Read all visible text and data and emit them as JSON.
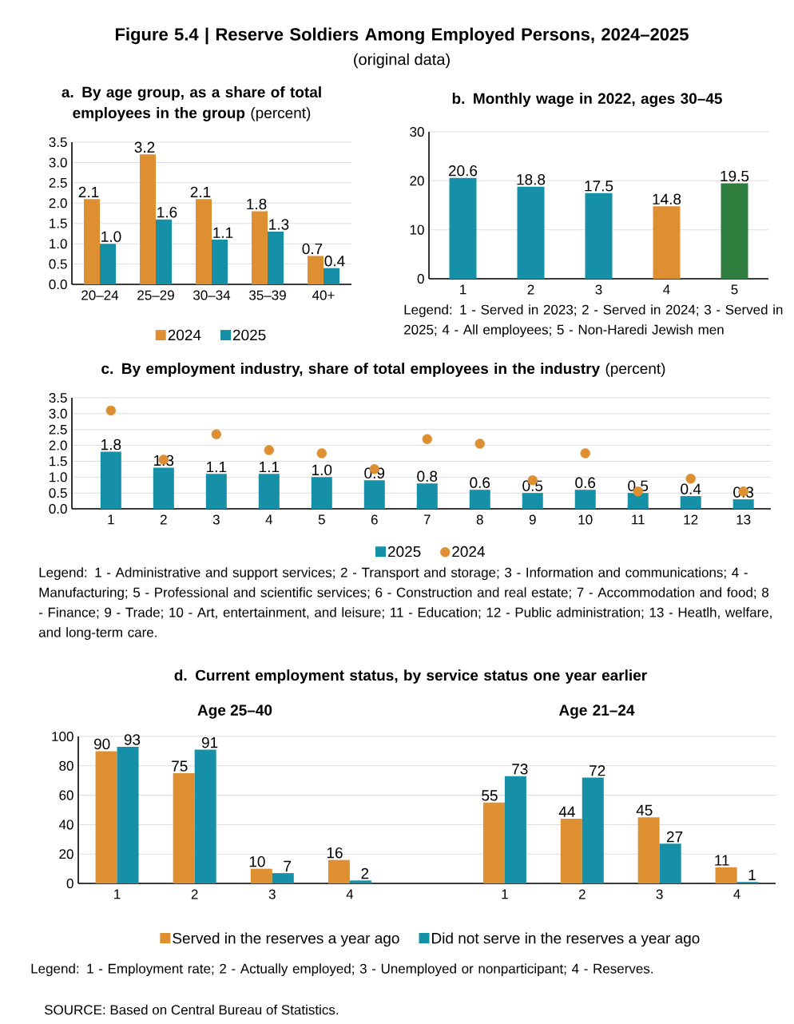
{
  "chart_data": [
    {
      "type": "other",
      "title": "**Figure 5.4 | Reserve Soldiers Among Employed Persons, 2024–2025**",
      "subtitle": "(original data)",
      "annotations": [
        "SOURCE: Based on Central Bureau of Statistics."
      ]
    },
    {
      "type": "bar",
      "title": "**a. By age group, as a share of total employees in the group** (percent)",
      "categories": [
        "20–24",
        "25–29",
        "30–34",
        "35–39",
        "40+"
      ],
      "series": [
        {
          "name": "2024",
          "color": "#dd8f32",
          "values": [
            2.1,
            3.2,
            2.1,
            1.8,
            0.7
          ],
          "value_labels": [
            "2.1",
            "3.2",
            "2.1",
            "1.8",
            "0.7"
          ]
        },
        {
          "name": "2025",
          "color": "#1690a6",
          "values": [
            1.0,
            1.6,
            1.1,
            1.3,
            0.4
          ],
          "value_labels": [
            "1.0",
            "1.6",
            "1.1",
            "1.3",
            "0.4"
          ]
        }
      ],
      "ylim": [
        0,
        3.5
      ],
      "yticks": [
        {
          "value": 0,
          "label": "0.0"
        },
        0.5,
        {
          "value": 1,
          "label": "1.0"
        },
        1.5,
        {
          "value": 2,
          "label": "2.0"
        },
        2.5,
        {
          "value": 3,
          "label": "3.0"
        },
        3.5
      ],
      "grid": true,
      "legend": "bottom"
    },
    {
      "type": "bar",
      "title": "**b. Monthly wage in 2022, ages 30–45**",
      "categories": [
        "1",
        "2",
        "3",
        "4",
        "5"
      ],
      "values": [
        20.6,
        18.8,
        17.5,
        14.8,
        19.5
      ],
      "colors": [
        "#1690a6",
        "#1690a6",
        "#1690a6",
        "#dd8f32",
        "#2e7d3c"
      ],
      "ylim": [
        0,
        30
      ],
      "yticks": [
        0,
        10,
        20,
        30
      ],
      "grid": true,
      "data_labels": true,
      "annotations": [
        "Legend: 1 - Served in 2023; 2 - Served in 2024; 3 - Served in 2025; 4 - All employees; 5 - Non-Haredi Jewish men"
      ]
    },
    {
      "type": "bar",
      "title": "**c. By employment industry, share of total employees in the industry** (percent)",
      "categories": [
        "1",
        "2",
        "3",
        "4",
        "5",
        "6",
        "7",
        "8",
        "9",
        "10",
        "11",
        "12",
        "13"
      ],
      "series": [
        {
          "name": "2025",
          "color": "#1690a6",
          "values": [
            1.8,
            1.3,
            1.1,
            1.1,
            1.0,
            0.9,
            0.8,
            0.6,
            0.5,
            0.6,
            0.5,
            0.4,
            0.3
          ],
          "value_labels": [
            "1.8",
            "1.3",
            "1.1",
            "1.1",
            "1.0",
            "0.9",
            "0.8",
            "0.6",
            "0.5",
            "0.6",
            "0.5",
            "0.4",
            "0.3"
          ]
        },
        {
          "name": "2024",
          "type": "scatter",
          "marker": "circle",
          "color": "#dd8f32",
          "values": [
            3.1,
            1.55,
            2.35,
            1.85,
            1.75,
            1.25,
            2.2,
            2.05,
            0.9,
            1.75,
            0.55,
            0.95,
            0.55
          ]
        }
      ],
      "ylim": [
        0,
        3.5
      ],
      "yticks": [
        {
          "value": 0,
          "label": "0.0"
        },
        0.5,
        {
          "value": 1,
          "label": "1.0"
        },
        1.5,
        {
          "value": 2,
          "label": "2.0"
        },
        2.5,
        {
          "value": 3,
          "label": "3.0"
        },
        3.5
      ],
      "grid": true,
      "legend": "bottom",
      "annotations": [
        "Legend: 1 - Administrative and support services; 2 - Transport and storage; 3 - Information and communications; 4 - Manufacturing; 5 - Professional and scientific services; 6 - Construction and real estate; 7 - Accommodation and food; 8 - Finance; 9 - Trade; 10 - Art, entertainment, and leisure; 11 - Education; 12 - Public administration; 13 - Heatlh, welfare, and long-term care."
      ]
    },
    {
      "type": "bar",
      "title": "**d. Current employment status, by service status one year earlier**",
      "subtitle": "**Age 25–40**",
      "categories": [
        "1",
        "2",
        "3",
        "4"
      ],
      "series": [
        {
          "name": "Served in the reserves a year ago",
          "color": "#dd8f32",
          "values": [
            90,
            75,
            10,
            16
          ]
        },
        {
          "name": "Did not serve in the reserves a year ago",
          "color": "#1690a6",
          "values": [
            93,
            91,
            7,
            2
          ]
        }
      ],
      "ylim": [
        0,
        100
      ],
      "yticks": [
        0,
        20,
        40,
        60,
        80,
        100
      ],
      "grid": true,
      "legend": "bottom",
      "data_labels": true,
      "annotations": [
        "Legend: 1 - Employment rate; 2 - Actually employed; 3 - Unemployed or nonparticipant; 4 - Reserves."
      ]
    },
    {
      "type": "bar",
      "title": "**Age 21–24**",
      "categories": [
        "1",
        "2",
        "3",
        "4"
      ],
      "series": [
        {
          "color": "#dd8f32",
          "values": [
            55,
            44,
            45,
            11
          ]
        },
        {
          "color": "#1690a6",
          "values": [
            73,
            72,
            27,
            1
          ]
        }
      ],
      "ylim": [
        0,
        100
      ],
      "yticks": [
        0,
        20,
        40,
        60,
        80,
        100
      ],
      "grid": true,
      "data_labels": true,
      "tick_labels": "x"
    }
  ]
}
